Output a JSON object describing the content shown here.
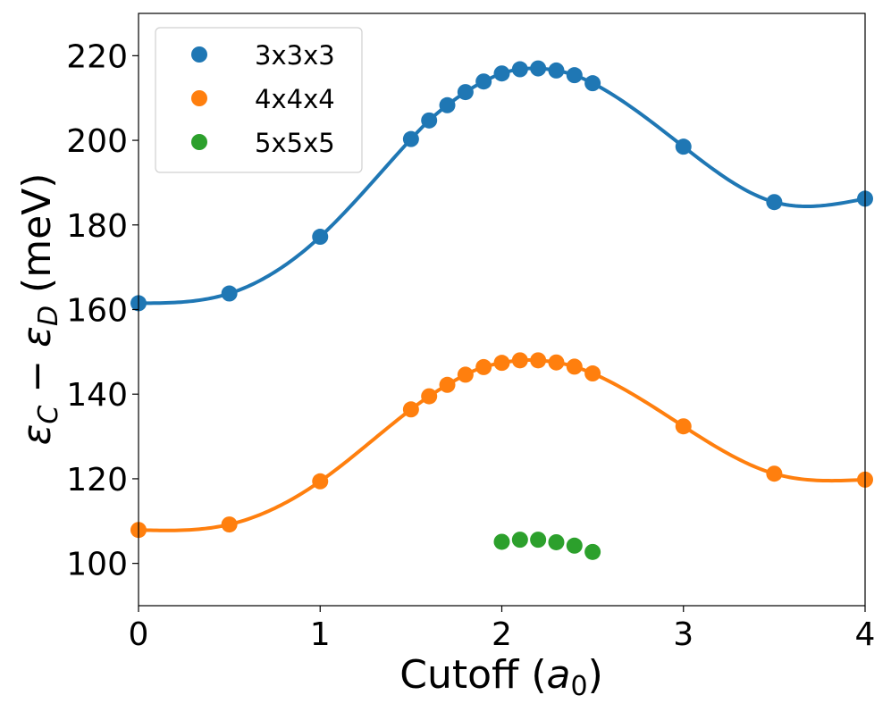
{
  "chart_data": {
    "type": "scatter",
    "title": "",
    "xlabel": "Cutoff (a0)",
    "xlabel_parts": {
      "main": "Cutoff (",
      "var": "a",
      "sub": "0",
      "close": ")"
    },
    "ylabel": "εC − εD (meV)",
    "ylabel_parts": {
      "eps1": "ε",
      "sub1": "C",
      "minus": " − ",
      "eps2": "ε",
      "sub2": "D",
      "unit": " (meV)"
    },
    "xlim": [
      0,
      4
    ],
    "ylim": [
      90,
      230
    ],
    "xticks": [
      0,
      1,
      2,
      3,
      4
    ],
    "yticks": [
      100,
      120,
      140,
      160,
      180,
      200,
      220
    ],
    "grid": false,
    "legend_position": "top-left",
    "series": [
      {
        "name": "3x3x3",
        "color": "#1f77b4",
        "fit_curve": true,
        "x": [
          0,
          0.5,
          1.0,
          1.5,
          1.6,
          1.7,
          1.8,
          1.9,
          2.0,
          2.1,
          2.2,
          2.3,
          2.4,
          2.5,
          3.0,
          3.5,
          4.0
        ],
        "y": [
          161.5,
          163.8,
          177.2,
          200.3,
          204.7,
          208.3,
          211.4,
          213.9,
          215.8,
          216.8,
          217.0,
          216.5,
          215.4,
          213.5,
          198.5,
          185.4,
          186.2
        ]
      },
      {
        "name": "4x4x4",
        "color": "#ff7f0e",
        "fit_curve": true,
        "x": [
          0,
          0.5,
          1.0,
          1.5,
          1.6,
          1.7,
          1.8,
          1.9,
          2.0,
          2.1,
          2.2,
          2.3,
          2.4,
          2.5,
          3.0,
          3.5,
          4.0
        ],
        "y": [
          107.9,
          109.2,
          119.4,
          136.4,
          139.5,
          142.2,
          144.6,
          146.4,
          147.4,
          148.0,
          148.0,
          147.5,
          146.5,
          144.9,
          132.4,
          121.2,
          119.8
        ]
      },
      {
        "name": "5x5x5",
        "color": "#2ca02c",
        "fit_curve": false,
        "x": [
          2.0,
          2.1,
          2.2,
          2.3,
          2.4,
          2.5
        ],
        "y": [
          105.1,
          105.6,
          105.6,
          105.0,
          104.2,
          102.7
        ]
      }
    ]
  }
}
